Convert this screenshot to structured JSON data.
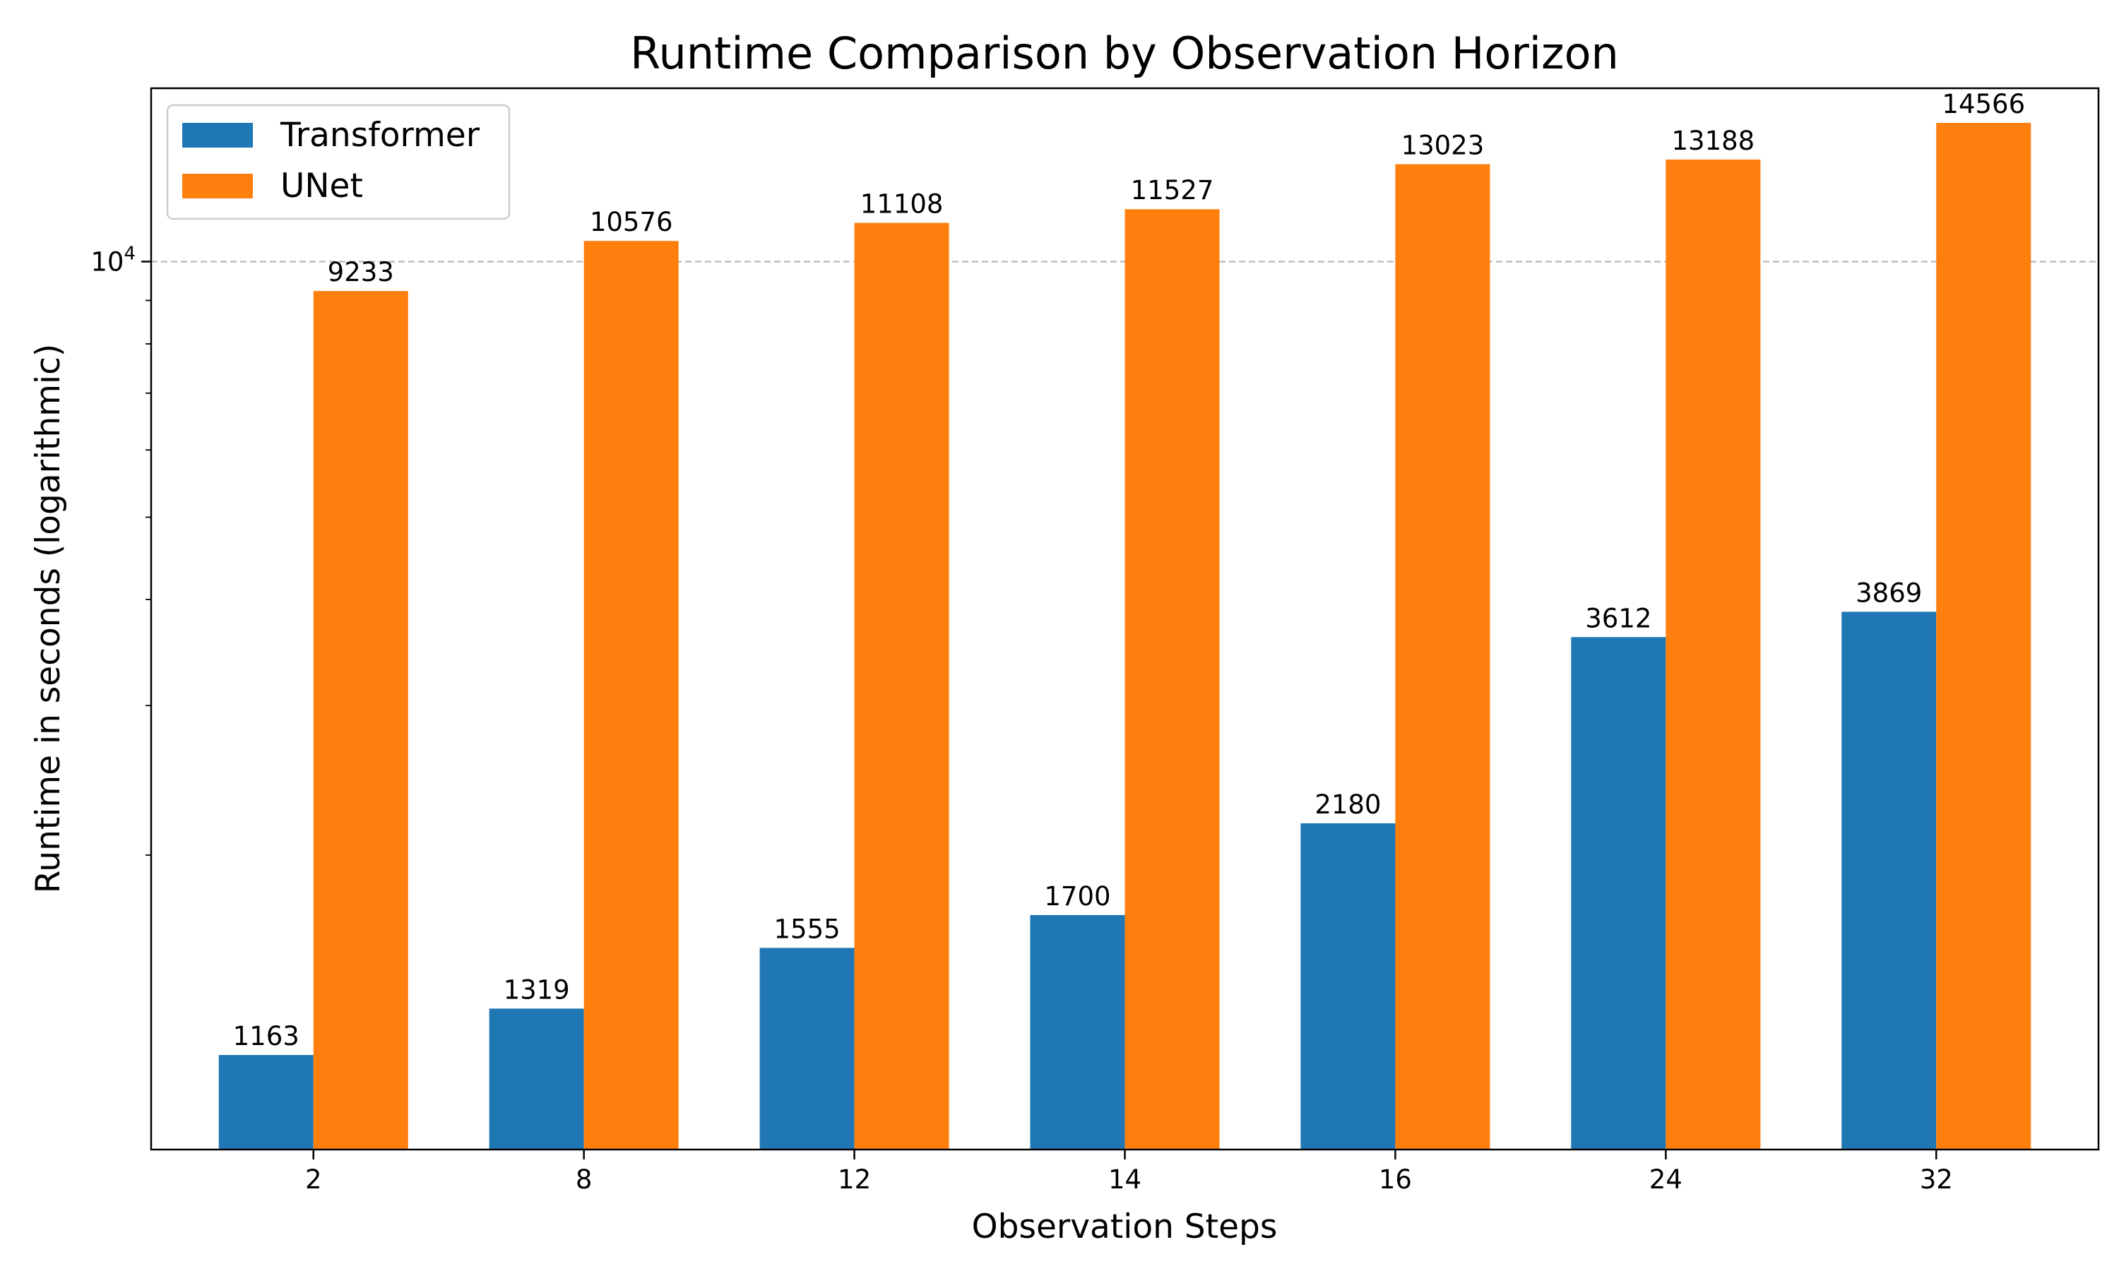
{
  "chart_data": {
    "type": "bar",
    "title": "Runtime Comparison by Observation Horizon",
    "xlabel": "Observation Steps",
    "ylabel": "Runtime in seconds (logarithmic)",
    "yscale": "log",
    "ylim": [
      900,
      16000
    ],
    "ytick_labels": [
      {
        "value": 10000,
        "base": "10",
        "exponent": "4"
      }
    ],
    "grid": "y-major-dashed",
    "legend_position": "top-left",
    "categories": [
      "2",
      "8",
      "12",
      "14",
      "16",
      "24",
      "32"
    ],
    "series": [
      {
        "name": "Transformer",
        "color": "#1f77b4",
        "values": [
          1163,
          1319,
          1555,
          1700,
          2180,
          3612,
          3869
        ]
      },
      {
        "name": "UNet",
        "color": "#ff7f0e",
        "values": [
          9233,
          10576,
          11108,
          11527,
          13023,
          13188,
          14566
        ]
      }
    ]
  }
}
